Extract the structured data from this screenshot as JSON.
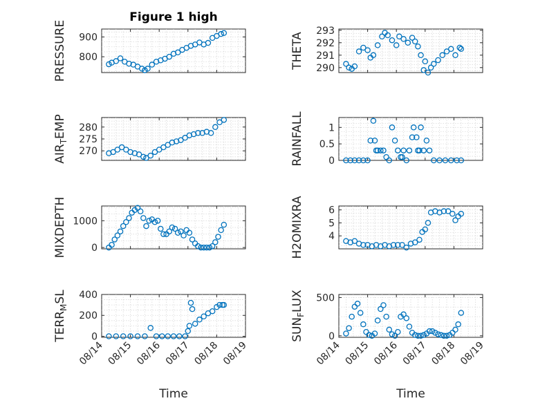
{
  "figure": {
    "title": "Figure 1 high",
    "xlabel": "Time",
    "date_ticks": [
      "08/14",
      "08/15",
      "08/16",
      "08/17",
      "08/18",
      "08/19"
    ],
    "marker_color": "#0072bd",
    "marker": "open-circle",
    "grid": true
  },
  "chart_data": [
    {
      "type": "scatter",
      "ylabel": "PRESSURE",
      "position": "row1-left",
      "ylim": [
        720,
        940
      ],
      "yticks": [
        800,
        900
      ],
      "x_unit": "days since 08/14 00:00",
      "x": [
        0.25,
        0.35,
        0.5,
        0.65,
        0.8,
        0.95,
        1.1,
        1.25,
        1.4,
        1.5,
        1.6,
        1.75,
        1.9,
        2.05,
        2.2,
        2.35,
        2.5,
        2.65,
        2.8,
        2.95,
        3.1,
        3.25,
        3.4,
        3.55,
        3.7,
        3.85,
        4.0,
        4.15,
        4.25
      ],
      "values": [
        762,
        770,
        778,
        792,
        775,
        765,
        760,
        750,
        740,
        732,
        740,
        760,
        775,
        782,
        790,
        800,
        815,
        822,
        835,
        845,
        855,
        862,
        872,
        862,
        870,
        895,
        905,
        915,
        920
      ]
    },
    {
      "type": "scatter",
      "ylabel": "THETA",
      "position": "row1-right",
      "ylim": [
        289.6,
        293.1
      ],
      "yticks": [
        290,
        291,
        292,
        293
      ],
      "x_unit": "days since 08/14 00:00",
      "x": [
        0.25,
        0.35,
        0.45,
        0.55,
        0.7,
        0.85,
        1.0,
        1.1,
        1.2,
        1.35,
        1.5,
        1.6,
        1.7,
        1.85,
        2.0,
        2.1,
        2.25,
        2.4,
        2.55,
        2.65,
        2.75,
        2.85,
        2.95,
        3.0,
        3.1,
        3.2,
        3.3,
        3.45,
        3.6,
        3.75,
        3.9,
        4.05,
        4.2,
        4.25
      ],
      "values": [
        290.3,
        290.0,
        289.9,
        290.1,
        291.3,
        291.6,
        291.4,
        290.8,
        291.0,
        291.8,
        292.5,
        292.8,
        292.6,
        292.2,
        291.8,
        292.5,
        292.3,
        292.0,
        292.4,
        292.1,
        291.7,
        291.0,
        289.8,
        290.5,
        289.6,
        290.0,
        290.3,
        290.6,
        291.0,
        291.3,
        291.5,
        291.0,
        291.6,
        291.5
      ]
    },
    {
      "type": "scatter",
      "ylabel": "AIR_TEMP",
      "position": "row2-left",
      "ylim": [
        266,
        284
      ],
      "yticks": [
        270,
        275,
        280
      ],
      "x_unit": "days since 08/14 00:00",
      "x": [
        0.25,
        0.4,
        0.55,
        0.7,
        0.85,
        1.0,
        1.15,
        1.3,
        1.45,
        1.55,
        1.7,
        1.85,
        2.0,
        2.15,
        2.3,
        2.45,
        2.6,
        2.75,
        2.9,
        3.05,
        3.2,
        3.35,
        3.5,
        3.65,
        3.8,
        3.95,
        4.1,
        4.25
      ],
      "values": [
        269,
        269.5,
        270.5,
        271.5,
        270.5,
        269.5,
        269,
        268.5,
        267.5,
        267,
        268,
        269.5,
        270.5,
        271.5,
        272.5,
        273.5,
        274,
        274.5,
        275.5,
        276.5,
        277,
        277.5,
        277.5,
        278,
        277.5,
        280,
        282,
        283
      ]
    },
    {
      "type": "scatter",
      "ylabel": "RAINFALL",
      "position": "row2-right",
      "ylim": [
        0,
        1.3
      ],
      "yticks": [
        0,
        0.5,
        1
      ],
      "x_unit": "days since 08/14 00:00",
      "x": [
        0.25,
        0.4,
        0.55,
        0.7,
        0.85,
        1.0,
        1.1,
        1.2,
        1.25,
        1.3,
        1.35,
        1.45,
        1.55,
        1.65,
        1.75,
        1.85,
        1.95,
        2.05,
        2.15,
        2.2,
        2.25,
        2.35,
        2.45,
        2.55,
        2.6,
        2.7,
        2.75,
        2.8,
        2.85,
        2.95,
        3.05,
        3.15,
        3.3,
        3.5,
        3.7,
        3.9,
        4.1,
        4.25
      ],
      "values": [
        0,
        0,
        0,
        0,
        0,
        0,
        0.6,
        1.2,
        0.6,
        0.3,
        0.3,
        0.3,
        0.3,
        0.1,
        0,
        1.0,
        0.6,
        0.3,
        0.1,
        0.1,
        0.3,
        0,
        0.3,
        0.7,
        1.0,
        0.7,
        0.3,
        0.3,
        1.0,
        0.3,
        0.6,
        0.3,
        0,
        0,
        0,
        0,
        0,
        0
      ]
    },
    {
      "type": "scatter",
      "ylabel": "MIXDEPTH",
      "position": "row3-left",
      "ylim": [
        -50,
        1550
      ],
      "yticks": [
        0,
        1000
      ],
      "x_unit": "days since 08/14 00:00",
      "x": [
        0.25,
        0.35,
        0.45,
        0.55,
        0.65,
        0.75,
        0.85,
        0.95,
        1.05,
        1.15,
        1.25,
        1.35,
        1.45,
        1.55,
        1.65,
        1.75,
        1.85,
        1.95,
        2.05,
        2.15,
        2.25,
        2.35,
        2.45,
        2.55,
        2.65,
        2.75,
        2.85,
        2.95,
        3.05,
        3.15,
        3.25,
        3.35,
        3.45,
        3.55,
        3.65,
        3.75,
        3.85,
        3.95,
        4.05,
        4.15,
        4.25
      ],
      "values": [
        0,
        100,
        300,
        450,
        600,
        800,
        950,
        1100,
        1300,
        1400,
        1480,
        1350,
        1100,
        800,
        1000,
        1050,
        950,
        1000,
        700,
        500,
        500,
        600,
        750,
        700,
        550,
        600,
        450,
        650,
        550,
        300,
        150,
        50,
        0,
        0,
        0,
        0,
        50,
        200,
        400,
        650,
        850
      ]
    },
    {
      "type": "scatter",
      "ylabel": "H2OMIXRA",
      "position": "row3-right",
      "ylim": [
        3.0,
        6.3
      ],
      "yticks": [
        4,
        5,
        6
      ],
      "x_unit": "days since 08/14 00:00",
      "x": [
        0.25,
        0.4,
        0.55,
        0.7,
        0.85,
        1.0,
        1.15,
        1.3,
        1.45,
        1.6,
        1.75,
        1.9,
        2.05,
        2.2,
        2.35,
        2.5,
        2.65,
        2.8,
        2.9,
        3.0,
        3.1,
        3.2,
        3.35,
        3.5,
        3.65,
        3.8,
        3.95,
        4.05,
        4.15,
        4.25
      ],
      "values": [
        3.6,
        3.5,
        3.6,
        3.4,
        3.3,
        3.3,
        3.2,
        3.3,
        3.2,
        3.3,
        3.2,
        3.3,
        3.3,
        3.3,
        3.1,
        3.4,
        3.5,
        3.7,
        4.3,
        4.5,
        5.0,
        5.8,
        5.9,
        5.8,
        5.9,
        5.9,
        5.7,
        5.2,
        5.5,
        5.7
      ]
    },
    {
      "type": "scatter",
      "ylabel": "TERR_MSL",
      "position": "row4-left",
      "ylim": [
        -10,
        400
      ],
      "yticks": [
        0,
        200,
        400
      ],
      "x_unit": "days since 08/14 00:00",
      "x": [
        0.25,
        0.5,
        0.75,
        1.0,
        1.25,
        1.5,
        1.7,
        1.9,
        2.1,
        2.3,
        2.5,
        2.7,
        2.9,
        3.0,
        3.05,
        3.1,
        3.15,
        3.25,
        3.4,
        3.55,
        3.7,
        3.85,
        4.0,
        4.1,
        4.2,
        4.25
      ],
      "values": [
        0,
        0,
        0,
        0,
        0,
        0,
        80,
        0,
        0,
        0,
        0,
        0,
        0,
        50,
        100,
        320,
        260,
        120,
        160,
        190,
        220,
        240,
        280,
        300,
        300,
        300
      ]
    },
    {
      "type": "scatter",
      "ylabel": "SUN_FLUX",
      "position": "row4-right",
      "ylim": [
        -20,
        540
      ],
      "yticks": [
        0,
        500
      ],
      "x_unit": "days since 08/14 00:00",
      "x": [
        0.25,
        0.35,
        0.45,
        0.55,
        0.65,
        0.75,
        0.85,
        0.95,
        1.05,
        1.15,
        1.25,
        1.35,
        1.45,
        1.55,
        1.65,
        1.75,
        1.85,
        1.95,
        2.05,
        2.15,
        2.25,
        2.35,
        2.45,
        2.55,
        2.65,
        2.75,
        2.85,
        2.95,
        3.05,
        3.15,
        3.25,
        3.35,
        3.45,
        3.55,
        3.65,
        3.75,
        3.85,
        3.95,
        4.05,
        4.15,
        4.25
      ],
      "values": [
        30,
        100,
        250,
        380,
        420,
        300,
        150,
        50,
        10,
        0,
        30,
        200,
        350,
        400,
        250,
        80,
        20,
        0,
        50,
        250,
        280,
        230,
        120,
        40,
        10,
        0,
        0,
        10,
        30,
        60,
        60,
        40,
        20,
        10,
        0,
        0,
        10,
        40,
        80,
        150,
        300
      ]
    }
  ]
}
